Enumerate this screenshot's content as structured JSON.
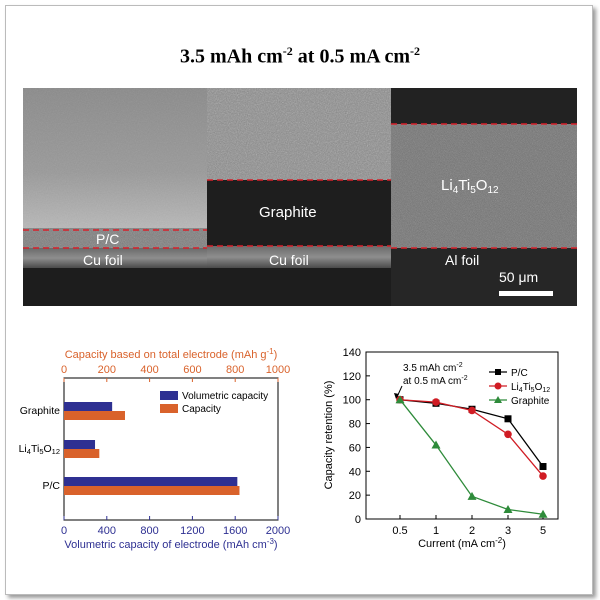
{
  "figure": {
    "title_main": "3.5 mAh cm",
    "title_exp1": "-2",
    "title_mid": " at 0.5 mA cm",
    "title_exp2": "-2"
  },
  "sem": {
    "panels": [
      {
        "coating": "P/C",
        "substrate": "Cu foil"
      },
      {
        "coating": "Graphite",
        "substrate": "Cu foil"
      },
      {
        "coating": "Li4Ti5O12",
        "coating_parts": [
          "Li",
          "4",
          "Ti",
          "5",
          "O",
          "12"
        ],
        "substrate": "Al foil"
      }
    ],
    "scale_bar": "50 μm",
    "colors": {
      "boundary": "#d8202a",
      "dark": "#1a1a1a"
    }
  },
  "chart_data": [
    {
      "type": "bar",
      "orientation": "horizontal",
      "categories": [
        "Graphite",
        "Li4Ti5O12",
        "P/C"
      ],
      "category_labels": [
        {
          "parts": [
            "Graphite"
          ]
        },
        {
          "parts": [
            "Li",
            "4",
            "Ti",
            "5",
            "O",
            "12"
          ]
        },
        {
          "parts": [
            "P/C"
          ]
        }
      ],
      "series": [
        {
          "name": "Volumetric capacity",
          "axis": "bottom",
          "values": [
            450,
            290,
            1620
          ],
          "color": "#2e3092"
        },
        {
          "name": "Capacity",
          "axis": "top",
          "values": [
            285,
            165,
            820
          ],
          "color": "#d9622b"
        }
      ],
      "bottom_axis": {
        "label": "Volumetric capacity of electrode (mAh cm",
        "label_exp": "-3",
        "label_end": ")",
        "range": [
          0,
          2000
        ],
        "ticks": [
          "0",
          "400",
          "800",
          "1200",
          "1600",
          "2000"
        ],
        "color": "#2e3092"
      },
      "top_axis": {
        "label": "Capacity based on total electrode (mAh g",
        "label_exp": "-1",
        "label_end": ")",
        "range": [
          0,
          1000
        ],
        "ticks": [
          "0",
          "200",
          "400",
          "600",
          "800",
          "1000"
        ],
        "color": "#d9622b"
      },
      "legend": "top-right"
    },
    {
      "type": "line",
      "x": [
        "0.5",
        "1",
        "2",
        "3",
        "5"
      ],
      "series": [
        {
          "name": "P/C",
          "values": [
            100,
            97,
            92,
            84,
            44
          ],
          "color": "#000000",
          "marker": "square"
        },
        {
          "name": "Li4Ti5O12",
          "name_parts": [
            "Li",
            "4",
            "Ti",
            "5",
            "O",
            "12"
          ],
          "values": [
            100,
            98,
            91,
            71,
            36
          ],
          "color": "#d01c24",
          "marker": "circle"
        },
        {
          "name": "Graphite",
          "values": [
            100,
            62,
            19,
            8,
            4
          ],
          "color": "#2e8b3a",
          "marker": "triangle"
        }
      ],
      "xlabel": "Current (mA cm",
      "xlabel_exp": "-2",
      "xlabel_end": ")",
      "ylabel": "Capacity retention (%)",
      "ylim": [
        0,
        140
      ],
      "yticks": [
        "0",
        "20",
        "40",
        "60",
        "80",
        "100",
        "120",
        "140"
      ],
      "annotation_line1": "3.5 mAh cm",
      "annotation_line1_exp": "-2",
      "annotation_line2": "at 0.5 mA cm",
      "annotation_line2_exp": "-2",
      "legend": "top-right"
    }
  ]
}
